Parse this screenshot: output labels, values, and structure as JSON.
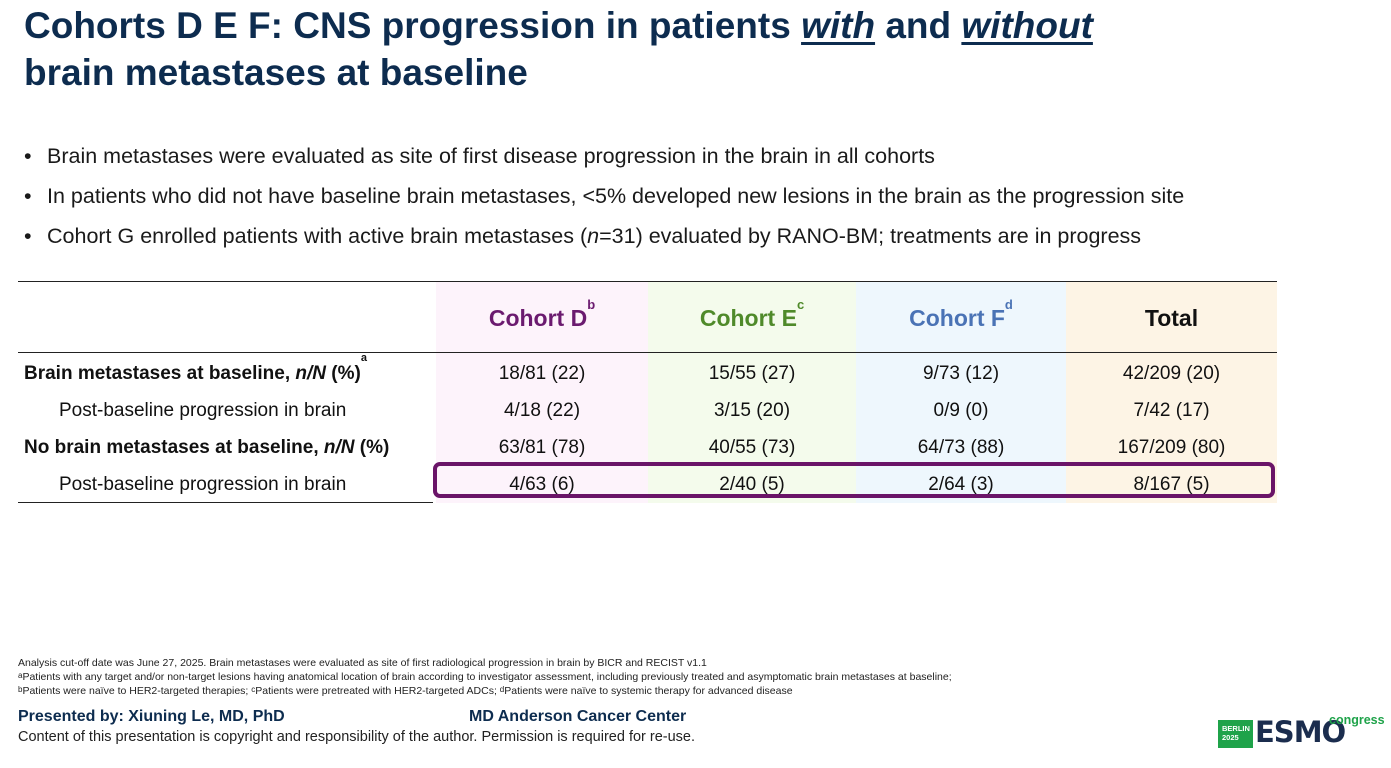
{
  "title": {
    "part1": "Cohorts D E F: CNS progression in patients ",
    "with": "with",
    "and": " and ",
    "without": "without",
    "line2": "brain metastases at baseline"
  },
  "bullets": [
    {
      "text": "Brain metastases were evaluated as site of first disease progression in the brain in all cohorts"
    },
    {
      "text": "In patients who did not have baseline brain metastases, <5% developed new lesions in the brain as the progression site"
    },
    {
      "pre": "Cohort G enrolled patients with active brain metastases (",
      "ital": "n",
      "post": "=31) evaluated by RANO-BM; treatments are in progress"
    }
  ],
  "table": {
    "columns": [
      {
        "label": "Cohort D",
        "sup": "b",
        "color": "#6b1a6f",
        "bg": "#fdf3fb"
      },
      {
        "label": "Cohort E",
        "sup": "c",
        "color": "#4f8a2a",
        "bg": "#f4fbec"
      },
      {
        "label": "Cohort F",
        "sup": "d",
        "color": "#4a73b5",
        "bg": "#eef7fd"
      },
      {
        "label": "Total",
        "sup": "",
        "color": "#111111",
        "bg": "#fdf4e5"
      }
    ],
    "rows": [
      {
        "label_pre": "Brain metastases at baseline, ",
        "label_ital": "n/N",
        "label_post": " (%)",
        "label_sup": "a",
        "bold": true,
        "values": [
          "18/81 (22)",
          "15/55 (27)",
          "9/73 (12)",
          "42/209 (20)"
        ]
      },
      {
        "label_pre": "Post-baseline progression in brain",
        "label_ital": "",
        "label_post": "",
        "label_sup": "",
        "bold": false,
        "values": [
          "4/18 (22)",
          "3/15 (20)",
          "0/9 (0)",
          "7/42 (17)"
        ]
      },
      {
        "label_pre": "No brain metastases at baseline, ",
        "label_ital": "n/N",
        "label_post": " (%)",
        "label_sup": "",
        "bold": true,
        "values": [
          "63/81 (78)",
          "40/55 (73)",
          "64/73 (88)",
          "167/209 (80)"
        ]
      },
      {
        "label_pre": "Post-baseline progression in brain",
        "label_ital": "",
        "label_post": "",
        "label_sup": "",
        "bold": false,
        "values": [
          "4/63 (6)",
          "2/40 (5)",
          "2/64 (3)",
          "8/167 (5)"
        ]
      }
    ],
    "highlight_color": "#6a1468"
  },
  "footnotes": {
    "line1": "Analysis cut-off date was June 27, 2025. Brain metastases were evaluated as site of first radiological progression in brain by BICR and RECIST v1.1",
    "line2_sup": "a",
    "line2": "Patients with any target and/or non-target lesions having anatomical location of brain according to investigator assessment, including previously treated and asymptomatic brain metastases at baseline;",
    "line3_sup_b": "b",
    "line3_b": "Patients were naïve to HER2-targeted therapies; ",
    "line3_sup_c": "c",
    "line3_c": "Patients were pretreated with HER2-targeted ADCs; ",
    "line3_sup_d": "d",
    "line3_d": "Patients were naïve to systemic therapy for advanced disease"
  },
  "footer": {
    "presented": "Presented by: Xiuning Le, MD, PhD",
    "institution": "MD Anderson Cancer Center",
    "copyright": "Content of this presentation is copyright and responsibility of the author. Permission is required for re-use."
  },
  "logo": {
    "badge_line1": "BERLIN",
    "badge_line2": "2025",
    "wordmark": "ESMO",
    "tagline": "congress"
  },
  "colors": {
    "title": "#0d2c4f",
    "esmo_green": "#1fa34a"
  }
}
